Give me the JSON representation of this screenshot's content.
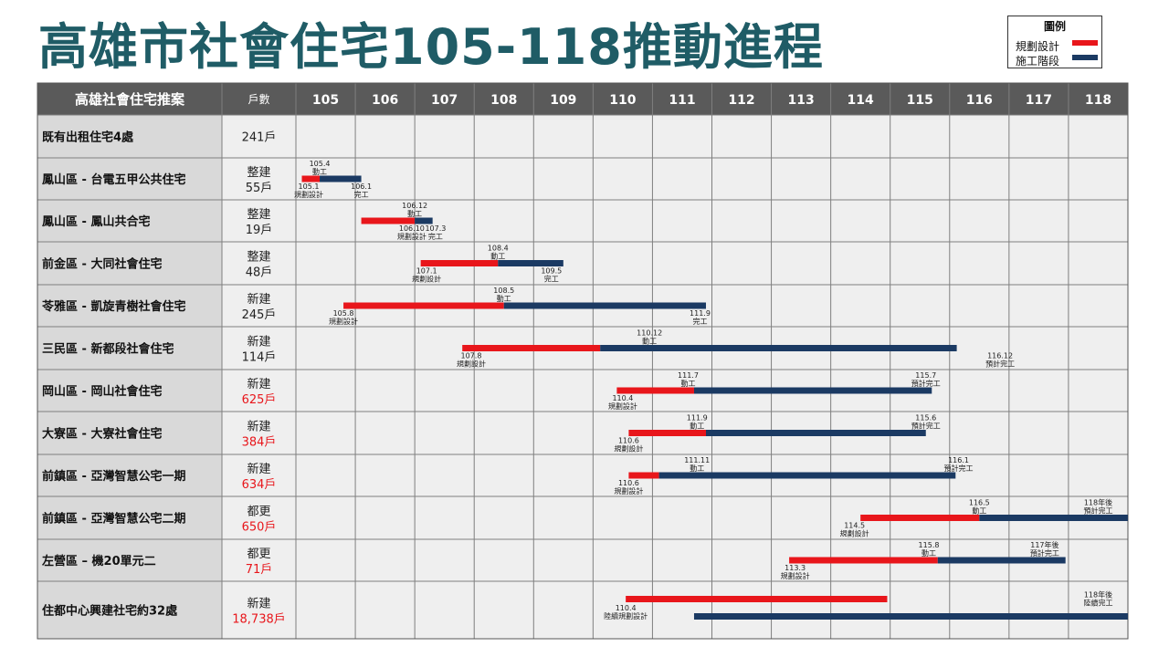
{
  "title": "高雄市社會住宅105-118推動進程",
  "legend": {
    "title": "圖例",
    "items": [
      {
        "label": "規劃設計",
        "color": "#e8161b"
      },
      {
        "label": "施工階段",
        "color": "#1b3a63"
      }
    ]
  },
  "colors": {
    "planning": "#e8161b",
    "construction": "#1b3a63",
    "red_text": "#e8161b"
  },
  "chart_data": {
    "type": "gantt",
    "header": {
      "project_col": "高雄社會住宅推案",
      "units_col": "戶數"
    },
    "years": [
      "105",
      "106",
      "107",
      "108",
      "109",
      "110",
      "111",
      "112",
      "113",
      "114",
      "115",
      "116",
      "117",
      "118"
    ],
    "rows": [
      {
        "name": "既有出租住宅4處",
        "type": "",
        "units": "241戶",
        "units_red": false,
        "bars": [],
        "labels": []
      },
      {
        "name": "鳳山區 - 台電五甲公共住宅",
        "type": "整建",
        "units": "55戶",
        "units_red": false,
        "bars": [
          {
            "phase": "planning",
            "start": 105.1,
            "end": 105.4
          },
          {
            "phase": "construction",
            "start": 105.4,
            "end": 106.1
          }
        ],
        "labels": [
          {
            "lines": [
              "105.4",
              "動工"
            ],
            "at": 105.4,
            "pos": "above"
          },
          {
            "lines": [
              "105.1",
              "規劃設計"
            ],
            "at": 105.1,
            "pos": "below"
          },
          {
            "lines": [
              "106.1",
              "完工"
            ],
            "at": 106.1,
            "pos": "below"
          }
        ]
      },
      {
        "name": "鳳山區 - 鳳山共合宅",
        "type": "整建",
        "units": "19戶",
        "units_red": false,
        "bars": [
          {
            "phase": "planning",
            "start": 106.1,
            "end": 107.0
          },
          {
            "phase": "construction",
            "start": 107.0,
            "end": 107.3
          }
        ],
        "labels": [
          {
            "lines": [
              "106.12",
              "動工"
            ],
            "at": 107.0,
            "pos": "above"
          },
          {
            "lines": [
              "106.10",
              "規劃設計"
            ],
            "at": 106.95,
            "pos": "below"
          },
          {
            "lines": [
              "107.3",
              "完工"
            ],
            "at": 107.35,
            "pos": "below"
          }
        ]
      },
      {
        "name": "前金區 - 大同社會住宅",
        "type": "整建",
        "units": "48戶",
        "units_red": false,
        "bars": [
          {
            "phase": "planning",
            "start": 107.1,
            "end": 108.4
          },
          {
            "phase": "construction",
            "start": 108.4,
            "end": 109.5
          }
        ],
        "labels": [
          {
            "lines": [
              "108.4",
              "動工"
            ],
            "at": 108.4,
            "pos": "above"
          },
          {
            "lines": [
              "107.1",
              "規劃設計"
            ],
            "at": 107.2,
            "pos": "below"
          },
          {
            "lines": [
              "109.5",
              "完工"
            ],
            "at": 109.3,
            "pos": "below"
          }
        ]
      },
      {
        "name": "苓雅區 - 凱旋青樹社會住宅",
        "type": "新建",
        "units": "245戶",
        "units_red": false,
        "bars": [
          {
            "phase": "planning",
            "start": 105.8,
            "end": 108.5
          },
          {
            "phase": "construction",
            "start": 108.5,
            "end": 111.9
          }
        ],
        "labels": [
          {
            "lines": [
              "108.5",
              "動工"
            ],
            "at": 108.5,
            "pos": "above"
          },
          {
            "lines": [
              "105.8",
              "規劃設計"
            ],
            "at": 105.8,
            "pos": "below"
          },
          {
            "lines": [
              "111.9",
              "完工"
            ],
            "at": 111.8,
            "pos": "below"
          }
        ]
      },
      {
        "name": "三民區 - 新都段社會住宅",
        "type": "新建",
        "units": "114戶",
        "units_red": false,
        "bars": [
          {
            "phase": "planning",
            "start": 107.8,
            "end": 110.12
          },
          {
            "phase": "construction",
            "start": 110.12,
            "end": 116.12
          }
        ],
        "labels": [
          {
            "lines": [
              "110.12",
              "動工"
            ],
            "at": 110.95,
            "pos": "above"
          },
          {
            "lines": [
              "107.8",
              "規劃設計"
            ],
            "at": 107.95,
            "pos": "below"
          },
          {
            "lines": [
              "116.12",
              "預計完工"
            ],
            "at": 116.85,
            "pos": "below"
          }
        ]
      },
      {
        "name": "岡山區 - 岡山社會住宅",
        "type": "新建",
        "units": "625戶",
        "units_red": true,
        "bars": [
          {
            "phase": "planning",
            "start": 110.4,
            "end": 111.7
          },
          {
            "phase": "construction",
            "start": 111.7,
            "end": 115.7
          }
        ],
        "labels": [
          {
            "lines": [
              "111.7",
              "動工"
            ],
            "at": 111.6,
            "pos": "above"
          },
          {
            "lines": [
              "110.4",
              "規劃設計"
            ],
            "at": 110.5,
            "pos": "below"
          },
          {
            "lines": [
              "115.7",
              "預計完工"
            ],
            "at": 115.6,
            "pos": "above"
          }
        ]
      },
      {
        "name": "大寮區 - 大寮社會住宅",
        "type": "新建",
        "units": "384戶",
        "units_red": true,
        "bars": [
          {
            "phase": "planning",
            "start": 110.6,
            "end": 111.9
          },
          {
            "phase": "construction",
            "start": 111.9,
            "end": 115.6
          }
        ],
        "labels": [
          {
            "lines": [
              "111.9",
              "動工"
            ],
            "at": 111.75,
            "pos": "above"
          },
          {
            "lines": [
              "110.6",
              "規劃設計"
            ],
            "at": 110.6,
            "pos": "below"
          },
          {
            "lines": [
              "115.6",
              "預計完工"
            ],
            "at": 115.6,
            "pos": "above"
          }
        ]
      },
      {
        "name": "前鎮區 - 亞灣智慧公宅一期",
        "type": "新建",
        "units": "634戶",
        "units_red": true,
        "bars": [
          {
            "phase": "planning",
            "start": 110.6,
            "end": 111.11
          },
          {
            "phase": "construction",
            "start": 111.11,
            "end": 116.1
          }
        ],
        "labels": [
          {
            "lines": [
              "111.11",
              "動工"
            ],
            "at": 111.75,
            "pos": "above"
          },
          {
            "lines": [
              "110.6",
              "規劃設計"
            ],
            "at": 110.6,
            "pos": "below"
          },
          {
            "lines": [
              "116.1",
              "預計完工"
            ],
            "at": 116.15,
            "pos": "above"
          }
        ]
      },
      {
        "name": "前鎮區 - 亞灣智慧公宅二期",
        "type": "都更",
        "units": "650戶",
        "units_red": true,
        "bars": [
          {
            "phase": "planning",
            "start": 114.5,
            "end": 116.5
          },
          {
            "phase": "construction",
            "start": 116.5,
            "end": 119.0
          }
        ],
        "labels": [
          {
            "lines": [
              "116.5",
              "動工"
            ],
            "at": 116.5,
            "pos": "above"
          },
          {
            "lines": [
              "114.5",
              "規劃設計"
            ],
            "at": 114.4,
            "pos": "below"
          },
          {
            "lines": [
              "118年後",
              "預計完工"
            ],
            "at": 118.5,
            "pos": "above"
          }
        ]
      },
      {
        "name": "左營區 – 機20單元二",
        "type": "都更",
        "units": "71戶",
        "units_red": true,
        "bars": [
          {
            "phase": "planning",
            "start": 113.3,
            "end": 115.8
          },
          {
            "phase": "construction",
            "start": 115.8,
            "end": 117.95
          }
        ],
        "labels": [
          {
            "lines": [
              "115.8",
              "動工"
            ],
            "at": 115.65,
            "pos": "above"
          },
          {
            "lines": [
              "113.3",
              "規劃設計"
            ],
            "at": 113.4,
            "pos": "below"
          },
          {
            "lines": [
              "117年後",
              "預計完工"
            ],
            "at": 117.6,
            "pos": "above"
          }
        ]
      },
      {
        "name": "住都中心興建社宅約32處",
        "type": "新建",
        "units": "18,738戶",
        "units_red": true,
        "bars": [
          {
            "phase": "planning",
            "start": 110.55,
            "end": 114.95,
            "lane": "upper"
          },
          {
            "phase": "construction",
            "start": 111.7,
            "end": 119.0,
            "lane": "lower"
          }
        ],
        "labels": [
          {
            "lines": [
              "110.4",
              "陸續規劃設計"
            ],
            "at": 110.55,
            "pos": "below-mid"
          },
          {
            "lines": [
              "118年後",
              "陸續完工"
            ],
            "at": 118.5,
            "pos": "above"
          }
        ]
      }
    ]
  }
}
